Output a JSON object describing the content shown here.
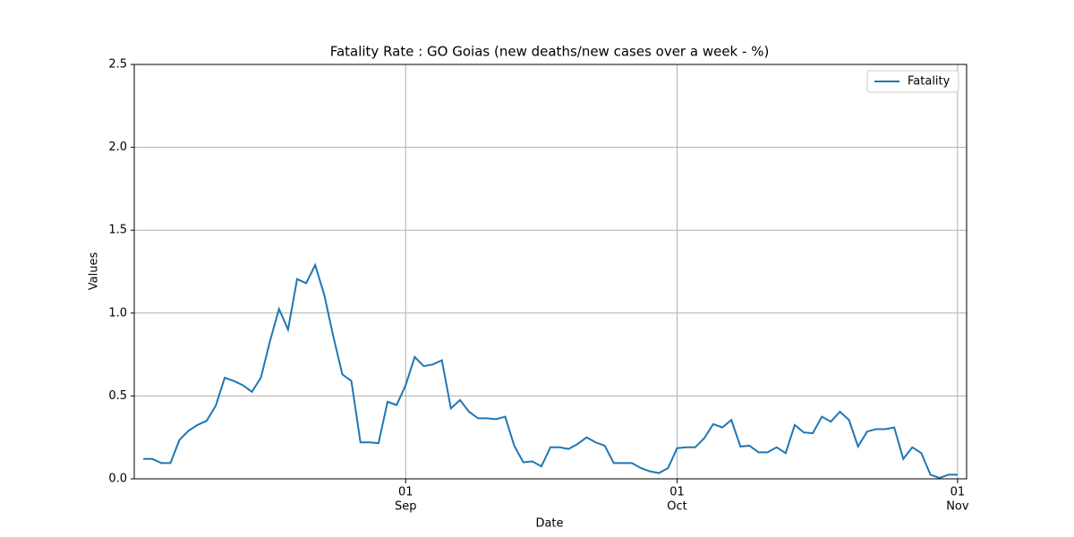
{
  "chart_data": {
    "type": "line",
    "title": "Fatality Rate : GO Goias (new deaths/new cases over a week - %)",
    "xlabel": "Date",
    "ylabel": "Values",
    "x": [
      "08-03",
      "08-04",
      "08-05",
      "08-06",
      "08-07",
      "08-08",
      "08-09",
      "08-10",
      "08-11",
      "08-12",
      "08-13",
      "08-14",
      "08-15",
      "08-16",
      "08-17",
      "08-18",
      "08-19",
      "08-20",
      "08-21",
      "08-22",
      "08-23",
      "08-24",
      "08-25",
      "08-26",
      "08-27",
      "08-28",
      "08-29",
      "08-30",
      "08-31",
      "09-01",
      "09-02",
      "09-03",
      "09-04",
      "09-05",
      "09-06",
      "09-07",
      "09-08",
      "09-09",
      "09-10",
      "09-11",
      "09-12",
      "09-13",
      "09-14",
      "09-15",
      "09-16",
      "09-17",
      "09-18",
      "09-19",
      "09-20",
      "09-21",
      "09-22",
      "09-23",
      "09-24",
      "09-25",
      "09-26",
      "09-27",
      "09-28",
      "09-29",
      "09-30",
      "10-01",
      "10-02",
      "10-03",
      "10-04",
      "10-05",
      "10-06",
      "10-07",
      "10-08",
      "10-09",
      "10-10",
      "10-11",
      "10-12",
      "10-13",
      "10-14",
      "10-15",
      "10-16",
      "10-17",
      "10-18",
      "10-19",
      "10-20",
      "10-21",
      "10-22",
      "10-23",
      "10-24",
      "10-25",
      "10-26",
      "10-27",
      "10-28",
      "10-29",
      "10-30",
      "10-31",
      "11-01"
    ],
    "series": [
      {
        "name": "Fatality",
        "color": "#1f77b4",
        "values": [
          0.12,
          0.12,
          0.095,
          0.095,
          0.235,
          0.29,
          0.325,
          0.35,
          0.44,
          0.61,
          0.59,
          0.565,
          0.525,
          0.61,
          0.83,
          1.025,
          0.9,
          1.205,
          1.18,
          1.29,
          1.11,
          0.86,
          0.63,
          0.59,
          0.22,
          0.22,
          0.215,
          0.465,
          0.445,
          0.565,
          0.735,
          0.68,
          0.69,
          0.715,
          0.425,
          0.475,
          0.405,
          0.365,
          0.365,
          0.36,
          0.375,
          0.2,
          0.1,
          0.105,
          0.075,
          0.19,
          0.19,
          0.18,
          0.21,
          0.25,
          0.22,
          0.2,
          0.095,
          0.095,
          0.095,
          0.065,
          0.045,
          0.035,
          0.065,
          0.185,
          0.19,
          0.19,
          0.245,
          0.33,
          0.31,
          0.355,
          0.195,
          0.2,
          0.16,
          0.16,
          0.19,
          0.155,
          0.325,
          0.28,
          0.275,
          0.375,
          0.345,
          0.405,
          0.355,
          0.195,
          0.285,
          0.3,
          0.3,
          0.31,
          0.12,
          0.19,
          0.155,
          0.025,
          0.005,
          0.025,
          0.025
        ]
      }
    ],
    "xlim": [
      "08-02",
      "11-02"
    ],
    "xticks": [
      {
        "value": "09-01",
        "label": "01",
        "month": "Sep"
      },
      {
        "value": "10-01",
        "label": "01",
        "month": "Oct"
      },
      {
        "value": "11-01",
        "label": "01",
        "month": "Nov"
      }
    ],
    "ylim": [
      0,
      2.5
    ],
    "yticks": [
      {
        "value": 0,
        "label": "0.0"
      },
      {
        "value": 0.5,
        "label": "0.5"
      },
      {
        "value": 1,
        "label": "1.0"
      },
      {
        "value": 1.5,
        "label": "1.5"
      },
      {
        "value": 2,
        "label": "2.0"
      },
      {
        "value": 2.5,
        "label": "2.5"
      }
    ],
    "grid": true,
    "legend": "upper right"
  }
}
